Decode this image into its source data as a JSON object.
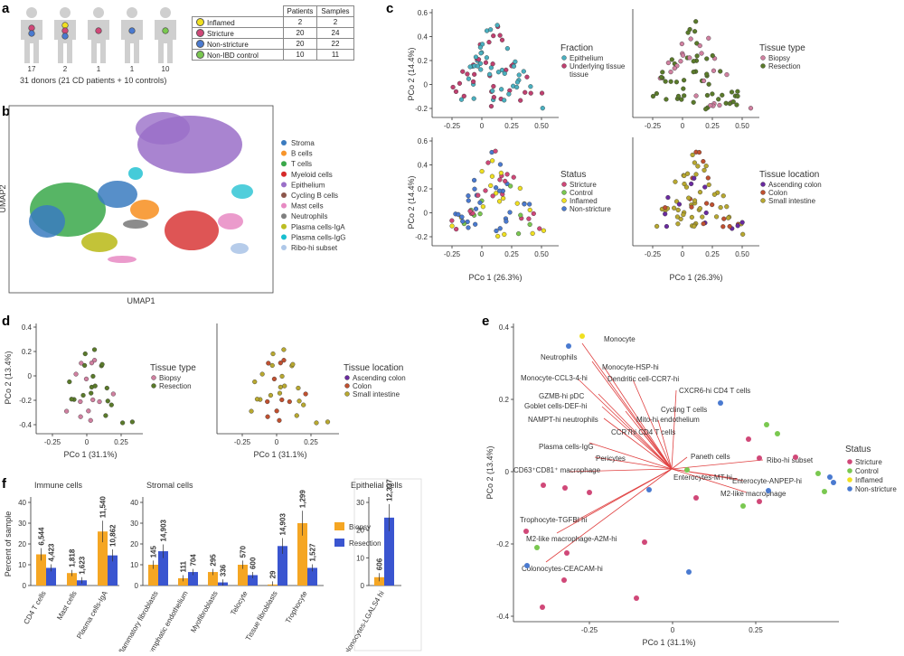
{
  "panels": {
    "a": "a",
    "b": "b",
    "c": "c",
    "d": "d",
    "e": "e",
    "f": "f"
  },
  "colors": {
    "inflamed": "#f0e020",
    "stricture": "#d04878",
    "nonstricture": "#4a7ad0",
    "nonibd": "#7ac850",
    "stroma": "#3a7bbf",
    "bcells": "#f7952b",
    "tcells": "#3aa84a",
    "myeloid": "#d62a2a",
    "epithelium": "#9a6fc8",
    "cyclingb": "#8c564b",
    "mast": "#e78ac3",
    "neutro": "#7f7f7f",
    "plasmaA": "#bcbd22",
    "plasmaG": "#17becf",
    "ribo": "#aec7e8",
    "biopsy": "#f5a623",
    "resection": "#3a55d0",
    "green": "#5a7a2a",
    "pink": "#d080a0",
    "olive": "#b8a830",
    "purple": "#6a2aa0",
    "orange": "#c05030",
    "cyan": "#4ab0c0",
    "magenta": "#c04070"
  },
  "panel_a": {
    "donor_counts": [
      "17",
      "2",
      "1",
      "1",
      "10"
    ],
    "caption": "31 donors (21 CD patients + 10 controls)",
    "table_headers": [
      "Patients",
      "Samples"
    ],
    "rows": [
      {
        "label": "Inflamed",
        "patients": "2",
        "samples": "2"
      },
      {
        "label": "Stricture",
        "patients": "20",
        "samples": "24"
      },
      {
        "label": "Non-stricture",
        "patients": "20",
        "samples": "22"
      },
      {
        "label": "Non-IBD control",
        "patients": "10",
        "samples": "11"
      }
    ]
  },
  "panel_b": {
    "xlabel": "UMAP1",
    "ylabel": "UMAP2",
    "legend": [
      "Stroma",
      "B cells",
      "T cells",
      "Myeloid cells",
      "Epithelium",
      "Cycling B cells",
      "Mast cells",
      "Neutrophils",
      "Plasma cells-IgA",
      "Plasma cells-IgG",
      "Ribo-hi subset"
    ]
  },
  "panel_c": {
    "ylabel": "PCo 2 (14.4%)",
    "xlabel": "PCo 1 (26.3%)",
    "yticks": [
      "0.6",
      "0.4",
      "0.2",
      "0",
      "-0.2"
    ],
    "xticks": [
      "-0.25",
      "0",
      "0.25",
      "0.50"
    ],
    "legends": [
      {
        "title": "Fraction",
        "items": [
          "Epithelium",
          "Underlying tissue"
        ],
        "item_extra": "tissue"
      },
      {
        "title": "Tissue type",
        "items": [
          "Biopsy",
          "Resection"
        ]
      },
      {
        "title": "Status",
        "items": [
          "Stricture",
          "Control",
          "Inflamed",
          "Non-stricture"
        ]
      },
      {
        "title": "Tissue location",
        "items": [
          "Ascending colon",
          "Colon",
          "Small intestine"
        ]
      }
    ]
  },
  "panel_d": {
    "ylabel": "PCo 2 (13.4%)",
    "xlabel": "PCo 1 (31.1%)",
    "yticks": [
      "0.4",
      "0.2",
      "0",
      "-0.2",
      "-0.4"
    ],
    "xticks": [
      "-0.25",
      "0",
      "0.25"
    ],
    "legends": [
      {
        "title": "Tissue type",
        "items": [
          "Biopsy",
          "Resection"
        ]
      },
      {
        "title": "Tissue location",
        "items": [
          "Ascending colon",
          "Colon",
          "Small intestine"
        ]
      }
    ]
  },
  "panel_e": {
    "ylabel": "PCo 2 (13.4%)",
    "xlabel": "PCo 1 (31.1%)",
    "yticks": [
      "0.4",
      "0.2",
      "0",
      "-0.2",
      "-0.4"
    ],
    "xticks": [
      "-0.25",
      "0",
      "0.25"
    ],
    "legend_title": "Status",
    "legend": [
      "Stricture",
      "Control",
      "Inflamed",
      "Non-stricture"
    ],
    "labels": [
      "Monocyte",
      "Neutrophils",
      "Monocyte-HSP-hi",
      "Monocyte-CCL3-4-hi",
      "Dendritic cell-CCR7-hi",
      "CXCR6-hi CD4 T cells",
      "GZMB-hi pDC",
      "Goblet cells-DEF-hi",
      "Cycling T cells",
      "NAMPT-hi neutrophils",
      "Mito-hi endothelium",
      "CCR7hi CD4 T cells",
      "Plasma cells-IgG",
      "Pericytes",
      "CD63⁺CD81⁺ macrophage",
      "Paneth cells",
      "Ribo-hi subset",
      "Enterocytes-MT-hi",
      "Enterocyte-ANPEP-hi",
      "M2-like macrophage",
      "Trophocyte-TGFBI hi",
      "M2-like macrophage-A2M-hi",
      "Colonocytes-CEACAM-hi"
    ]
  },
  "chart_data": [
    {
      "type": "bar",
      "title": "Immune cells",
      "ylabel": "Percent of sample",
      "ylim": [
        0,
        40
      ],
      "yticks": [
        "0",
        "10",
        "20",
        "30",
        "40"
      ],
      "categories": [
        "CD4 T cells",
        "Mast cells",
        "Plasma cells-IgA"
      ],
      "series": [
        {
          "name": "Biopsy",
          "values": [
            15,
            6,
            26
          ]
        },
        {
          "name": "Resection",
          "values": [
            8.5,
            2.5,
            14.5
          ]
        }
      ],
      "labels_biopsy": [
        "6,544",
        "1,818",
        "11,540"
      ],
      "labels_resection": [
        "4,423",
        "1,623",
        "10,862"
      ]
    },
    {
      "type": "bar",
      "title": "Stromal cells",
      "ylim": [
        0,
        40
      ],
      "yticks": [
        "0",
        "10",
        "20",
        "30",
        "40"
      ],
      "categories": [
        "Inflammatory fibroblasts",
        "Lymphatic endothelium",
        "Myofibroblasts",
        "Telocyte",
        "Tissue fibroblasts",
        "Trophocyte"
      ],
      "series": [
        {
          "name": "Biopsy",
          "values": [
            10,
            3.5,
            6.5,
            10,
            0.5,
            30
          ]
        },
        {
          "name": "Resection",
          "values": [
            16.5,
            6.5,
            1.5,
            5,
            19,
            8.5
          ]
        }
      ],
      "labels_biopsy": [
        "145",
        "111",
        "295",
        "570",
        "29",
        "1,299"
      ],
      "labels_resection": [
        "14,903",
        "704",
        "336",
        "600",
        "14,903",
        "1,527"
      ],
      "legend": [
        "Biopsy",
        "Resection"
      ]
    },
    {
      "type": "bar",
      "title": "Epithelial cells",
      "ylim": [
        0,
        30
      ],
      "yticks": [
        "0",
        "10",
        "20",
        "30"
      ],
      "categories": [
        "Colonocytes-LGALS4 hi"
      ],
      "series": [
        {
          "name": "Biopsy",
          "values": [
            3
          ]
        },
        {
          "name": "Resection",
          "values": [
            24.5
          ]
        }
      ],
      "labels_biopsy": [
        "606"
      ],
      "labels_resection": [
        "12,337"
      ]
    }
  ]
}
